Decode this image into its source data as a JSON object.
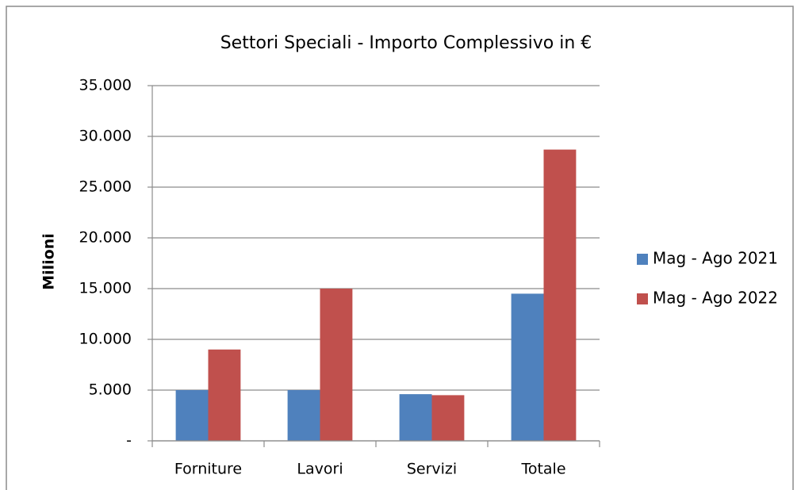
{
  "chart_data": {
    "type": "bar",
    "title": "Settori Speciali - Importo Complessivo in €",
    "y_label": "Milioni",
    "categories": [
      "Forniture",
      "Lavori",
      "Servizi",
      "Totale"
    ],
    "series": [
      {
        "name": "Mag - Ago 2021",
        "color": "#4f81bd",
        "values": [
          5000,
          5000,
          4600,
          14500
        ]
      },
      {
        "name": "Mag - Ago 2022",
        "color": "#c0504d",
        "values": [
          9000,
          15000,
          4500,
          28700
        ]
      }
    ],
    "ylim": [
      0,
      35000
    ],
    "yticks": [
      {
        "value": 0,
        "label": "-"
      },
      {
        "value": 5000,
        "label": "5.000"
      },
      {
        "value": 10000,
        "label": "10.000"
      },
      {
        "value": 15000,
        "label": "15.000"
      },
      {
        "value": 20000,
        "label": "20.000"
      },
      {
        "value": 25000,
        "label": "25.000"
      },
      {
        "value": 30000,
        "label": "30.000"
      },
      {
        "value": 35000,
        "label": "35.000"
      }
    ],
    "grid": true,
    "legend": "right"
  }
}
